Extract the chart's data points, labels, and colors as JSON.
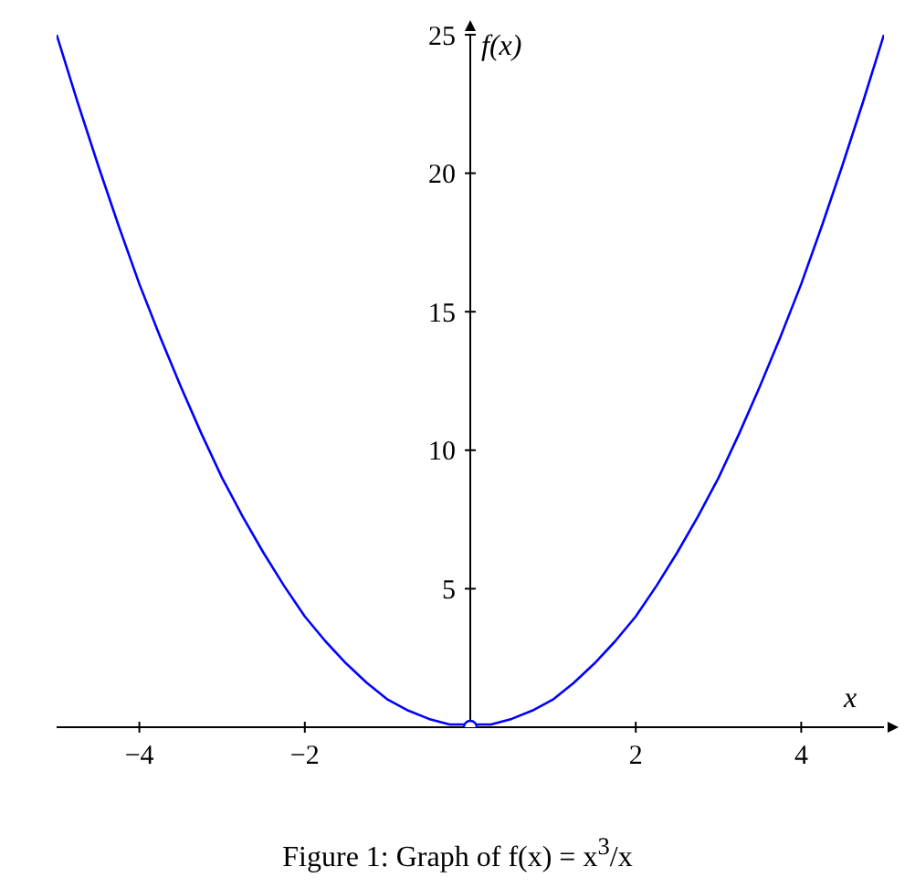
{
  "chart_data": {
    "type": "line",
    "xlabel": "x",
    "ylabel": "f(x)",
    "annotations": [
      "Figure 1: Graph of f(x) = x$^{3}$/x"
    ],
    "xlim": [
      -5,
      5
    ],
    "ylim": [
      0,
      25
    ],
    "xticks": [
      {
        "value": -4,
        "label": "−4"
      },
      {
        "value": -2,
        "label": "−2"
      },
      2,
      4
    ],
    "yticks": [
      5,
      10,
      15,
      20,
      25
    ],
    "grid": false,
    "marker": "none",
    "line_style": "solid",
    "series": [
      {
        "color": "#0000ff",
        "x": [
          -5,
          -4.75,
          -4.5,
          -4.25,
          -4,
          -3.75,
          -3.5,
          -3.25,
          -3,
          -2.75,
          -2.5,
          -2.25,
          -2,
          -1.75,
          -1.5,
          -1.25,
          -1,
          -0.75,
          -0.5,
          -0.25,
          0,
          0.25,
          0.5,
          0.75,
          1,
          1.25,
          1.5,
          1.75,
          2,
          2.25,
          2.5,
          2.75,
          3,
          3.25,
          3.5,
          3.75,
          4,
          4.25,
          4.5,
          4.75,
          5
        ],
        "values": [
          25,
          22.6,
          20.3,
          18.1,
          16,
          14.1,
          12.3,
          10.6,
          9,
          7.6,
          6.3,
          5.1,
          4,
          3.1,
          2.3,
          1.6,
          1,
          0.6,
          0.3,
          0.1,
          null,
          0.1,
          0.3,
          0.6,
          1,
          1.6,
          2.3,
          3.1,
          4,
          5.1,
          6.3,
          7.6,
          9,
          10.6,
          12.3,
          14.1,
          16,
          18.1,
          20.3,
          22.6,
          25
        ]
      },
      {
        "type": "scatter",
        "color": "#0000ff",
        "marker": "circle",
        "x": [
          0
        ],
        "values": [
          0
        ]
      }
    ]
  }
}
